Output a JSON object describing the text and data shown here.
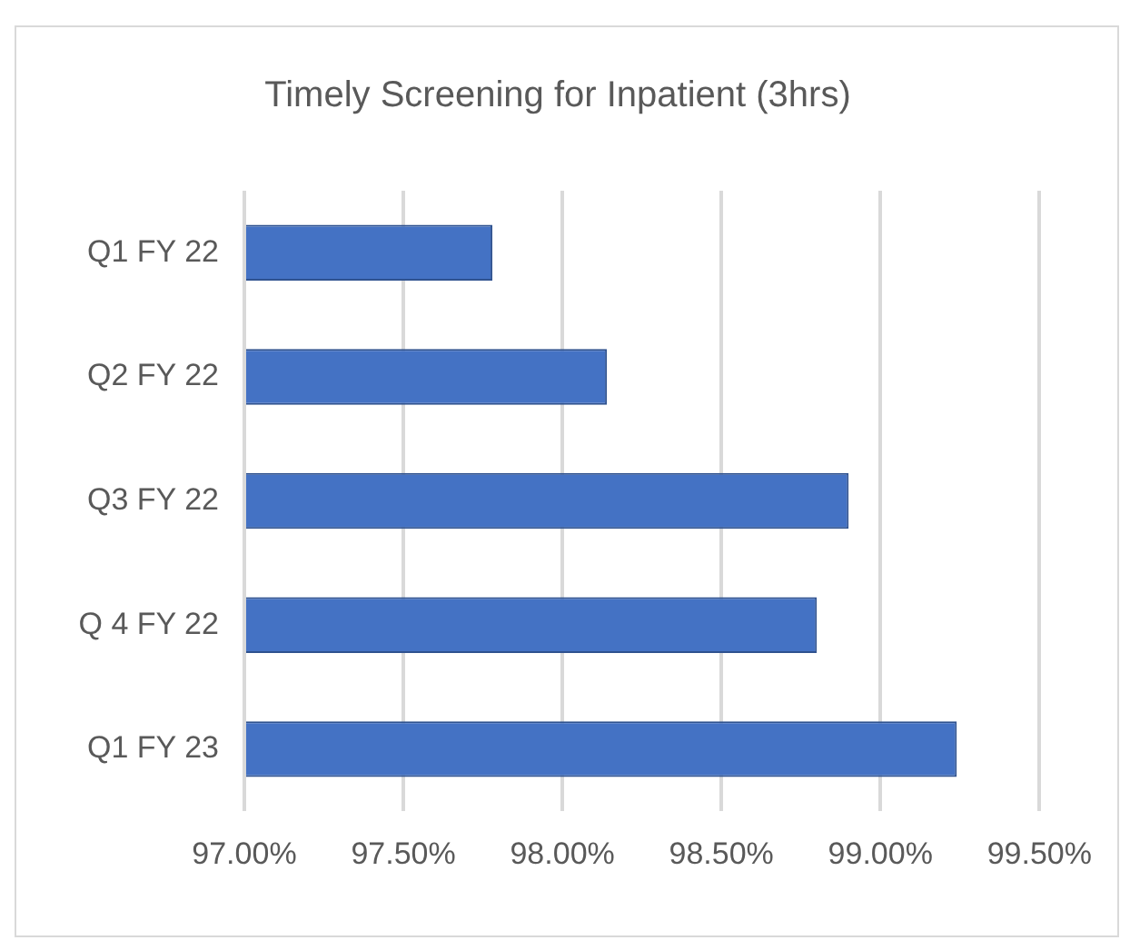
{
  "chart_data": {
    "type": "bar",
    "orientation": "horizontal",
    "title": "Timely Screening for Inpatient (3hrs)",
    "categories": [
      "Q1 FY 22",
      "Q2 FY 22",
      "Q3 FY 22",
      "Q 4 FY 22",
      "Q1 FY 23"
    ],
    "values": [
      97.78,
      98.14,
      98.9,
      98.8,
      99.24
    ],
    "color": "#4472c4",
    "xlim": [
      97,
      99.5
    ],
    "xticks": [
      {
        "value": 97,
        "label": "97.00%"
      },
      {
        "value": 97.5,
        "label": "97.50%"
      },
      {
        "value": 98,
        "label": "98.00%"
      },
      {
        "value": 98.5,
        "label": "98.50%"
      },
      {
        "value": 99,
        "label": "99.00%"
      },
      {
        "value": 99.5,
        "label": "99.50%"
      }
    ],
    "grid": "x",
    "legend": false
  }
}
